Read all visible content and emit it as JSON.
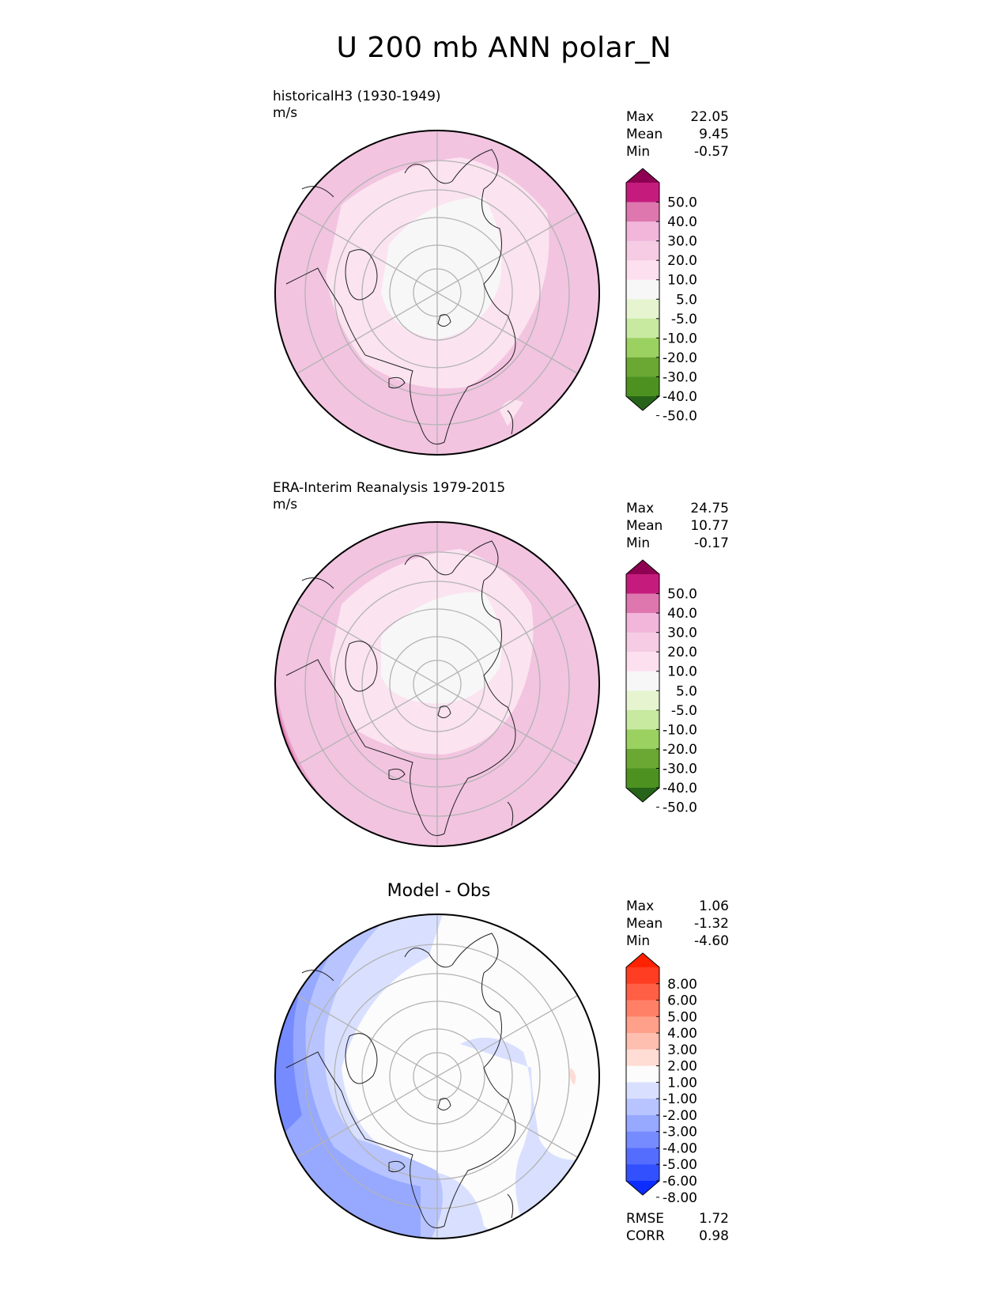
{
  "main_title": "U 200 mb ANN polar_N",
  "panels": [
    {
      "label_line1": "historicalH3 (1930-1949)",
      "label_line2": "m/s",
      "stats": [
        {
          "name": "Max",
          "value": "22.05"
        },
        {
          "name": "Mean",
          "value": "9.45"
        },
        {
          "name": "Min",
          "value": "-0.57"
        }
      ],
      "colorbar": {
        "labels": [
          "50.0",
          "40.0",
          "30.0",
          "20.0",
          "10.0",
          "5.0",
          "-5.0",
          "-10.0",
          "-20.0",
          "-30.0",
          "-40.0",
          "-50.0"
        ],
        "colors": [
          "#8e0152",
          "#c51b7d",
          "#de77ae",
          "#f1b6da",
          "#f5cce4",
          "#fde0ef",
          "#f7f7f7",
          "#e6f5d0",
          "#c7e9a0",
          "#9ad160",
          "#6aa833",
          "#4d9221",
          "#276419"
        ]
      }
    },
    {
      "label_line1": "ERA-Interim Reanalysis 1979-2015",
      "label_line2": "m/s",
      "stats": [
        {
          "name": "Max",
          "value": "24.75"
        },
        {
          "name": "Mean",
          "value": "10.77"
        },
        {
          "name": "Min",
          "value": "-0.17"
        }
      ],
      "colorbar": {
        "labels": [
          "50.0",
          "40.0",
          "30.0",
          "20.0",
          "10.0",
          "5.0",
          "-5.0",
          "-10.0",
          "-20.0",
          "-30.0",
          "-40.0",
          "-50.0"
        ],
        "colors": [
          "#8e0152",
          "#c51b7d",
          "#de77ae",
          "#f1b6da",
          "#f5cce4",
          "#fde0ef",
          "#f7f7f7",
          "#e6f5d0",
          "#c7e9a0",
          "#9ad160",
          "#6aa833",
          "#4d9221",
          "#276419"
        ]
      }
    },
    {
      "title": "Model - Obs",
      "stats": [
        {
          "name": "Max",
          "value": "1.06"
        },
        {
          "name": "Mean",
          "value": "-1.32"
        },
        {
          "name": "Min",
          "value": "-4.60"
        }
      ],
      "colorbar": {
        "labels": [
          "8.00",
          "6.00",
          "5.00",
          "4.00",
          "3.00",
          "2.00",
          "1.00",
          "-1.00",
          "-2.00",
          "-3.00",
          "-4.00",
          "-5.00",
          "-6.00",
          "-8.00"
        ],
        "colors": [
          "#ff2200",
          "#ff3d22",
          "#ff5f44",
          "#ff8066",
          "#ffa08a",
          "#ffbfb0",
          "#ffddd4",
          "#fcfcfc",
          "#d9e0ff",
          "#b8c4ff",
          "#97a8ff",
          "#768bff",
          "#546dff",
          "#3350ff",
          "#0d2cff"
        ]
      },
      "extra_stats": [
        {
          "name": "RMSE",
          "value": "1.72"
        },
        {
          "name": "CORR",
          "value": "0.98"
        }
      ]
    }
  ]
}
